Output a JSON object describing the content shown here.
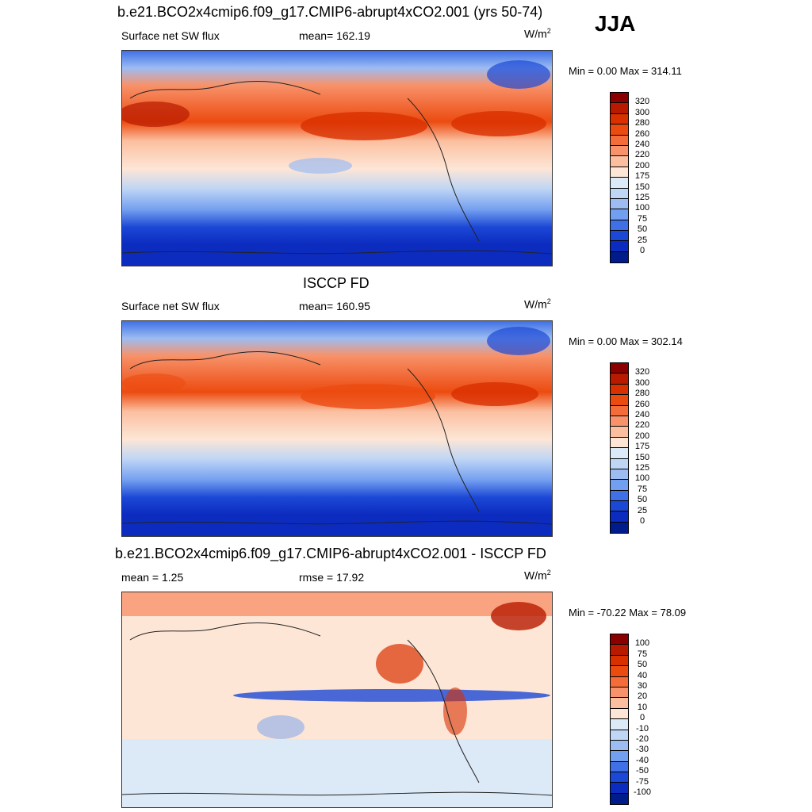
{
  "season": "JJA",
  "units_base": "W/m",
  "units_sup": "2",
  "panels": [
    {
      "title": "b.e21.BCO2x4cmip6.f09_g17.CMIP6-abrupt4xCO2.001 (yrs 50-74)",
      "left_label": "Surface net SW flux",
      "center_label": "mean= 162.19",
      "minmax": "Min =   0.00 Max = 314.11",
      "type": "abs"
    },
    {
      "title": "ISCCP FD",
      "left_label": "Surface net SW flux",
      "center_label": "mean= 160.95",
      "minmax": "Min =   0.00 Max = 302.14",
      "type": "abs"
    },
    {
      "title": "b.e21.BCO2x4cmip6.f09_g17.CMIP6-abrupt4xCO2.001 - ISCCP FD",
      "left_label": "mean =   1.25",
      "center_label": "rmse =  17.92",
      "minmax": "Min = -70.22 Max =  78.09",
      "type": "diff"
    }
  ],
  "colorbar_abs": {
    "labels": [
      "320",
      "300",
      "280",
      "260",
      "240",
      "220",
      "200",
      "175",
      "150",
      "125",
      "100",
      "75",
      "50",
      "25",
      "0"
    ],
    "colors": [
      "#8a0000",
      "#b81a00",
      "#d93000",
      "#ec4b10",
      "#f46c3a",
      "#f8926a",
      "#fbbfa0",
      "#fde6d6",
      "#dce9f7",
      "#c0d6f5",
      "#9cbcf2",
      "#739ff0",
      "#3f70e6",
      "#1c48d6",
      "#0c2cc0",
      "#001b8a"
    ]
  },
  "colorbar_diff": {
    "labels": [
      "100",
      "75",
      "50",
      "40",
      "30",
      "20",
      "10",
      "0",
      "-10",
      "-20",
      "-30",
      "-40",
      "-50",
      "-75",
      "-100"
    ],
    "colors": [
      "#8a0000",
      "#b81a00",
      "#d93000",
      "#ec4b10",
      "#f46c3a",
      "#f8926a",
      "#fbbfa0",
      "#fde6d6",
      "#dce9f7",
      "#c0d6f5",
      "#9cbcf2",
      "#739ff0",
      "#3f70e6",
      "#1c48d6",
      "#0c2cc0",
      "#001b8a"
    ]
  }
}
